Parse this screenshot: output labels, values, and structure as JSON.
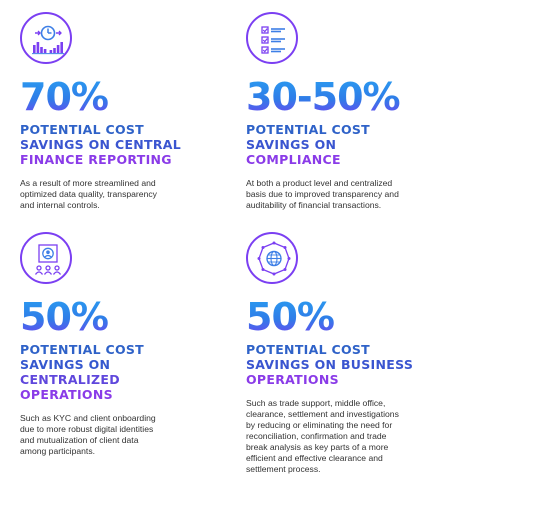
{
  "colors": {
    "purple": "#7b3ff2",
    "blue": "#2f7de8",
    "heading_blue": "#2f62c8",
    "heading_purple": "#8a3be8",
    "text": "#333333"
  },
  "stats": [
    {
      "icon": "clock-bar-chart-icon",
      "value": "70%",
      "heading_lines": [
        "POTENTIAL COST",
        "SAVINGS ON CENTRAL",
        "FINANCE REPORTING"
      ],
      "description_lines": [
        "As a result of more streamlined and",
        "optimized data quality, transparency",
        "and internal controls."
      ]
    },
    {
      "icon": "checklist-icon",
      "value": "30-50%",
      "heading_lines": [
        "POTENTIAL COST",
        "SAVINGS ON",
        "COMPLIANCE"
      ],
      "description_lines": [
        "At both a product level and centralized",
        "basis due to improved transparency and",
        "auditability of financial transactions."
      ]
    },
    {
      "icon": "user-group-icon",
      "value": "50%",
      "heading_lines": [
        "POTENTIAL COST",
        "SAVINGS ON",
        "CENTRALIZED",
        "OPERATIONS"
      ],
      "description_lines": [
        "Such as KYC and client onboarding",
        "due to more robust digital identities",
        "and mutualization of client data",
        "among participants."
      ]
    },
    {
      "icon": "globe-network-icon",
      "value": "50%",
      "heading_lines": [
        "POTENTIAL COST",
        "SAVINGS ON BUSINESS",
        "OPERATIONS"
      ],
      "description_lines": [
        "Such as trade support, middle office,",
        "clearance, settlement and investigations",
        "by reducing or eliminating the need for",
        "reconciliation, confirmation and trade",
        "break analysis as key parts of a more",
        "efficient and effective clearance and",
        "settlement process."
      ]
    }
  ]
}
